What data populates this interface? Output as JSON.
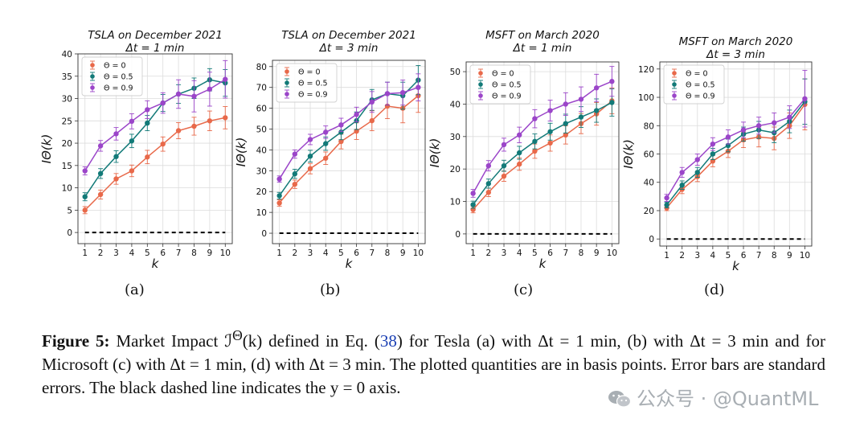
{
  "chart_data": [
    {
      "type": "line",
      "title": "TSLA on December 2021",
      "subtitle": "Δt = 1 min",
      "xlabel": "k",
      "ylabel": "IΘ(k)",
      "x": [
        1,
        2,
        3,
        4,
        5,
        6,
        7,
        8,
        9,
        10
      ],
      "ylim": [
        -2.5,
        40
      ],
      "yticks": [
        0,
        5,
        10,
        15,
        20,
        25,
        30,
        35,
        40
      ],
      "grid": true,
      "legend_position": "top-left",
      "series": [
        {
          "name": "Θ = 0",
          "color": "#e8694a",
          "values": [
            5.0,
            8.5,
            12.0,
            13.8,
            16.9,
            19.8,
            22.8,
            23.8,
            25.0,
            25.7
          ],
          "errors": [
            0.8,
            1.0,
            1.2,
            1.3,
            1.5,
            1.6,
            1.8,
            2.0,
            2.2,
            2.5
          ]
        },
        {
          "name": "Θ = 0.5",
          "color": "#127a78",
          "values": [
            8.0,
            13.2,
            17.0,
            20.5,
            24.5,
            29.0,
            31.0,
            32.3,
            34.2,
            33.5
          ],
          "errors": [
            0.9,
            1.1,
            1.3,
            1.5,
            1.7,
            1.9,
            2.1,
            2.3,
            2.5,
            3.0
          ]
        },
        {
          "name": "Θ = 0.9",
          "color": "#9b45c9",
          "values": [
            13.8,
            19.4,
            22.1,
            24.9,
            27.5,
            29.0,
            31.0,
            30.5,
            32.1,
            34.3
          ],
          "errors": [
            0.9,
            1.2,
            1.4,
            1.7,
            2.0,
            2.3,
            3.2,
            3.5,
            3.8,
            4.2
          ]
        }
      ],
      "baseline": 0
    },
    {
      "type": "line",
      "title": "TSLA on December 2021",
      "subtitle": "Δt = 3 min",
      "xlabel": "k",
      "ylabel": "IΘ(k)",
      "x": [
        1,
        2,
        3,
        4,
        5,
        6,
        7,
        8,
        9,
        10
      ],
      "ylim": [
        -5,
        83
      ],
      "yticks": [
        0,
        10,
        20,
        30,
        40,
        50,
        60,
        70,
        80
      ],
      "grid": true,
      "legend_position": "top-left",
      "series": [
        {
          "name": "Θ = 0",
          "color": "#e8694a",
          "values": [
            14.5,
            23.5,
            31.0,
            36.0,
            44.0,
            49.0,
            54.0,
            61.0,
            60.0,
            66.0
          ],
          "errors": [
            1.5,
            2.0,
            2.5,
            3.0,
            3.5,
            4.0,
            4.8,
            6.0,
            7.0,
            8.0
          ]
        },
        {
          "name": "Θ = 0.5",
          "color": "#127a78",
          "values": [
            18.0,
            28.5,
            37.0,
            43.0,
            48.5,
            54.0,
            64.0,
            67.0,
            66.0,
            73.5
          ],
          "errors": [
            1.6,
            2.2,
            2.8,
            3.2,
            3.6,
            4.2,
            5.0,
            5.5,
            6.5,
            7.0
          ]
        },
        {
          "name": "Θ = 0.9",
          "color": "#9b45c9",
          "values": [
            26.0,
            38.0,
            45.0,
            48.5,
            52.0,
            57.0,
            63.0,
            67.0,
            67.5,
            70.0
          ],
          "errors": [
            1.5,
            2.0,
            2.5,
            3.0,
            3.2,
            3.5,
            5.0,
            5.5,
            6.0,
            6.5
          ]
        }
      ],
      "baseline": 0
    },
    {
      "type": "line",
      "title": "MSFT on March 2020",
      "subtitle": "Δt = 1 min",
      "xlabel": "k",
      "ylabel": "IΘ(k)",
      "x": [
        1,
        2,
        3,
        4,
        5,
        6,
        7,
        8,
        9,
        10
      ],
      "ylim": [
        -3,
        53
      ],
      "yticks": [
        0,
        10,
        20,
        30,
        40,
        50
      ],
      "grid": true,
      "legend_position": "top-left",
      "series": [
        {
          "name": "Θ = 0",
          "color": "#e8694a",
          "values": [
            7.5,
            12.8,
            17.8,
            21.5,
            25.5,
            28.0,
            30.5,
            34.0,
            37.0,
            41.0
          ],
          "errors": [
            1.0,
            1.3,
            1.6,
            1.9,
            2.2,
            2.5,
            2.8,
            3.1,
            3.5,
            4.0
          ]
        },
        {
          "name": "Θ = 0.5",
          "color": "#127a78",
          "values": [
            9.0,
            15.5,
            21.0,
            25.0,
            28.5,
            31.5,
            34.0,
            36.0,
            38.0,
            40.5
          ],
          "errors": [
            1.1,
            1.4,
            1.7,
            2.0,
            2.3,
            2.6,
            2.9,
            3.2,
            3.6,
            4.2
          ]
        },
        {
          "name": "Θ = 0.9",
          "color": "#9b45c9",
          "values": [
            12.5,
            21.0,
            27.5,
            30.5,
            35.5,
            38.0,
            40.0,
            41.5,
            45.0,
            47.0
          ],
          "errors": [
            1.2,
            1.6,
            2.0,
            2.4,
            2.8,
            3.2,
            3.5,
            3.8,
            4.2,
            4.6
          ]
        }
      ],
      "baseline": 0
    },
    {
      "type": "line",
      "title": "MSFT on March 2020",
      "subtitle": "Δt = 3 min",
      "xlabel": "k",
      "ylabel": "IΘ(k)",
      "x": [
        1,
        2,
        3,
        4,
        5,
        6,
        7,
        8,
        9,
        10
      ],
      "ylim": [
        -5,
        125
      ],
      "yticks": [
        0,
        20,
        40,
        60,
        80,
        100,
        120
      ],
      "grid": true,
      "legend_position": "top-left",
      "series": [
        {
          "name": "Θ = 0",
          "color": "#e8694a",
          "values": [
            22.0,
            35.0,
            44.0,
            55.0,
            62.0,
            70.0,
            72.0,
            71.0,
            80.0,
            95.0
          ],
          "errors": [
            2.0,
            3.0,
            3.5,
            4.0,
            4.5,
            5.5,
            7.0,
            8.0,
            9.0,
            18.0
          ]
        },
        {
          "name": "Θ = 0.5",
          "color": "#127a78",
          "values": [
            24.0,
            38.0,
            47.0,
            60.0,
            66.0,
            74.0,
            77.0,
            75.0,
            83.0,
            97.0
          ],
          "errors": [
            2.0,
            3.0,
            3.5,
            4.0,
            4.5,
            5.0,
            6.0,
            7.0,
            8.0,
            16.0
          ]
        },
        {
          "name": "Θ = 0.9",
          "color": "#9b45c9",
          "values": [
            29.0,
            47.0,
            56.0,
            67.0,
            72.0,
            77.0,
            80.0,
            82.0,
            86.0,
            99.0
          ],
          "errors": [
            2.5,
            3.5,
            4.0,
            4.5,
            5.0,
            5.5,
            6.0,
            7.0,
            8.0,
            20.0
          ]
        }
      ],
      "baseline": 0
    }
  ],
  "subfigure_labels": [
    "(a)",
    "(b)",
    "(c)",
    "(d)"
  ],
  "caption": {
    "label": "Figure 5:",
    "text_1": " Market Impact ℐ",
    "superscript": "Θ",
    "text_2": "(k) defined in Eq. (",
    "eq_ref": "38",
    "text_3": ") for Tesla (a) with Δt = 1 min, (b) with Δt = 3 min and for Microsoft (c) with Δt = 1 min, (d) with Δt = 3 min. The plotted quantities are in basis points. Error bars are standard errors. The black dashed line indicates the y = 0 axis."
  },
  "watermark": "公众号 · @QuantML"
}
